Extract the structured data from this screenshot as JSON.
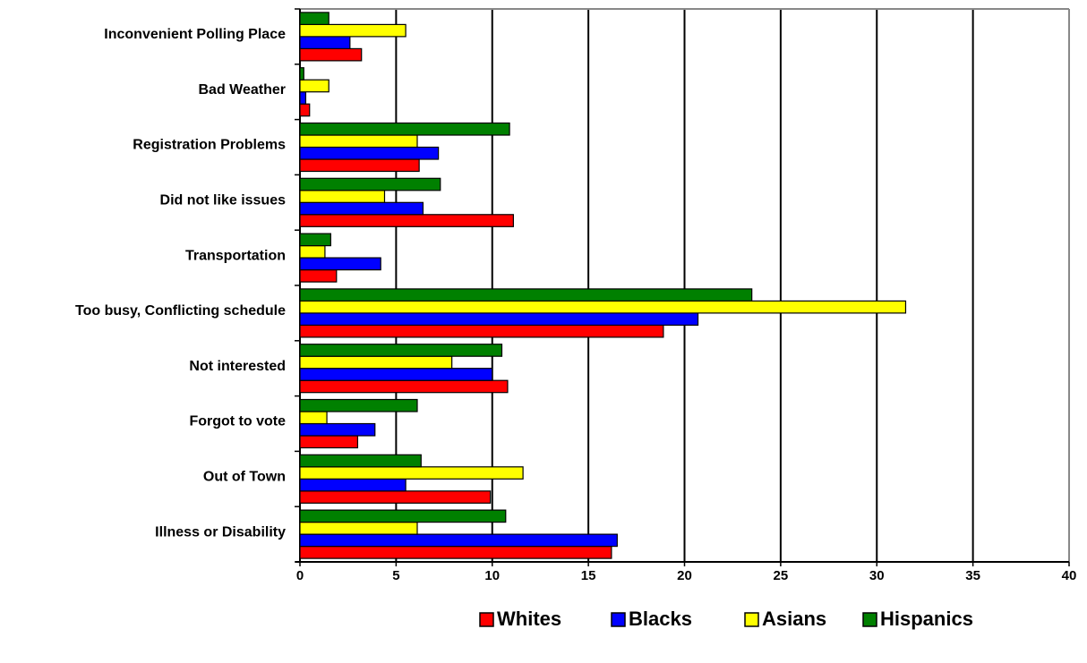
{
  "chart_data": {
    "type": "barh",
    "categories": [
      "Inconvenient Polling Place",
      "Bad Weather",
      "Registration Problems",
      "Did not like issues",
      "Transportation",
      "Too busy, Conflicting schedule",
      "Not interested",
      "Forgot to vote",
      "Out of Town",
      "Illness or Disability"
    ],
    "series": [
      {
        "name": "Whites",
        "color": "#ff0000",
        "values": [
          3.2,
          0.5,
          6.2,
          11.1,
          1.9,
          18.9,
          10.8,
          3.0,
          9.9,
          16.2
        ]
      },
      {
        "name": "Blacks",
        "color": "#0000ff",
        "values": [
          2.6,
          0.3,
          7.2,
          6.4,
          4.2,
          20.7,
          10.0,
          3.9,
          5.5,
          16.5
        ]
      },
      {
        "name": "Asians",
        "color": "#ffff00",
        "values": [
          5.5,
          1.5,
          6.1,
          4.4,
          1.3,
          31.5,
          7.9,
          1.4,
          11.6,
          6.1
        ]
      },
      {
        "name": "Hispanics",
        "color": "#008000",
        "values": [
          1.5,
          0.2,
          10.9,
          7.3,
          1.6,
          23.5,
          10.5,
          6.1,
          6.3,
          10.7
        ]
      }
    ],
    "xlim": [
      0,
      40
    ],
    "xticks": [
      0,
      5,
      10,
      15,
      20,
      25,
      30,
      35,
      40
    ],
    "grid": true,
    "legend": "bottom"
  }
}
